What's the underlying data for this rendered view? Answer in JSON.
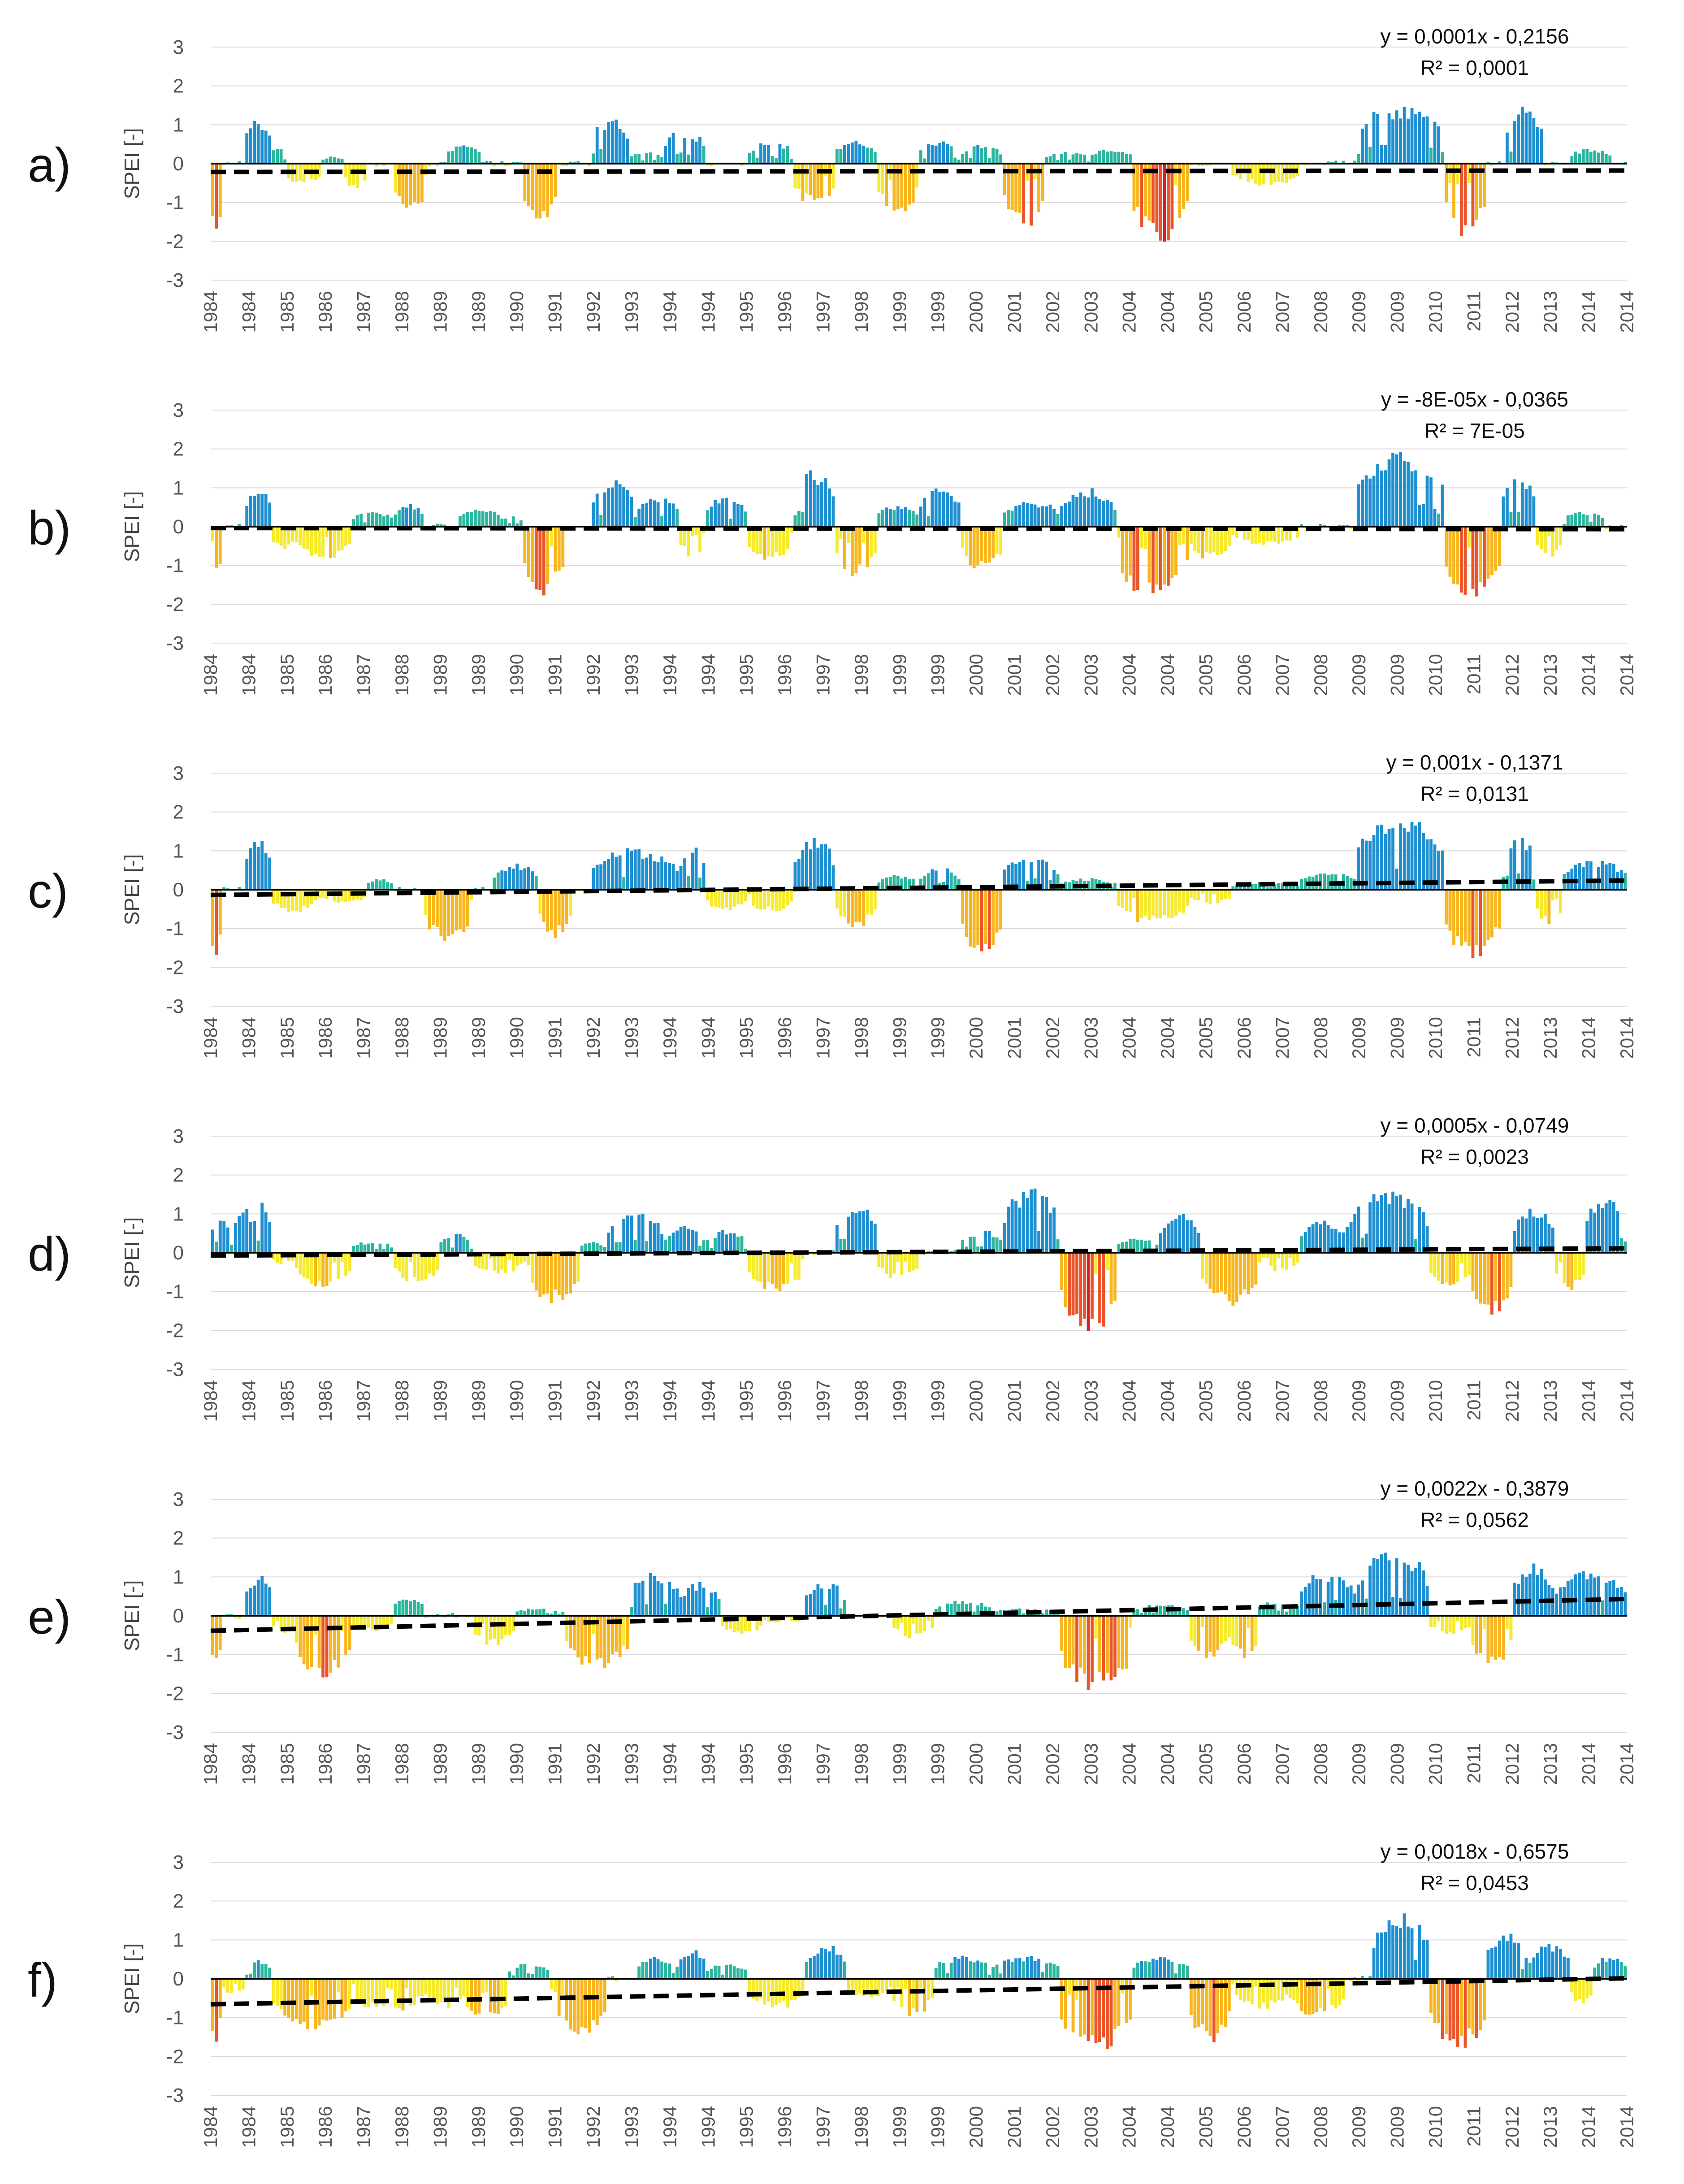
{
  "figure": {
    "colors": {
      "wet": "#1d8fd0",
      "wet_low": "#2bb59e",
      "dry_low": "#f6ea2c",
      "dry_mid": "#f7b51e",
      "dry_high": "#e9542a",
      "dry_extreme": "#d71f26",
      "trend": "#000000",
      "zero_line": "#000000",
      "grid": "#d9d9d9",
      "text": "#555555"
    }
  },
  "chart_data": [
    {
      "type": "bar",
      "panel_label": "a)",
      "ylabel": "SPEI [-]",
      "ylim": [
        -3,
        3
      ],
      "yticks": [
        "3",
        "2",
        "1",
        "0",
        "-1",
        "-2",
        "-3"
      ],
      "x_tick_labels": [
        "1984",
        "1984",
        "1985",
        "1986",
        "1987",
        "1988",
        "1989",
        "1989",
        "1990",
        "1991",
        "1992",
        "1993",
        "1994",
        "1994",
        "1995",
        "1996",
        "1997",
        "1998",
        "1999",
        "1999",
        "2000",
        "2001",
        "2002",
        "2003",
        "2004",
        "2004",
        "2005",
        "2006",
        "2007",
        "2008",
        "2009",
        "2009",
        "2010",
        "2011",
        "2012",
        "2013",
        "2014",
        "2014"
      ],
      "equation": "y = 0,0001x - 0,2156",
      "r_squared": "R² = 0,0001",
      "trend": {
        "slope": 0.0001,
        "intercept": -0.2156
      },
      "months": 372,
      "episodes": [
        [
          0,
          8,
          -1.8
        ],
        [
          8,
          23,
          0
        ],
        [
          23,
          44,
          1.2
        ],
        [
          44,
          55,
          0.5
        ],
        [
          55,
          78,
          -0.6
        ],
        [
          78,
          95,
          0.2
        ],
        [
          95,
          110,
          -0.7
        ],
        [
          110,
          130,
          0
        ],
        [
          130,
          152,
          -1.3
        ],
        [
          152,
          168,
          0
        ],
        [
          168,
          190,
          0.5
        ],
        [
          190,
          220,
          0
        ],
        [
          220,
          245,
          -1.6
        ],
        [
          245,
          270,
          0
        ],
        [
          270,
          296,
          1.2
        ],
        [
          296,
          320,
          0.3
        ],
        [
          320,
          350,
          0.9
        ],
        [
          350,
          380,
          0
        ],
        [
          380,
          410,
          0.6
        ],
        [
          410,
          440,
          -1.1
        ],
        [
          440,
          470,
          0.6
        ],
        [
          470,
          500,
          -1.3
        ],
        [
          500,
          530,
          0.6
        ],
        [
          530,
          560,
          0.5
        ],
        [
          560,
          590,
          -1.7
        ],
        [
          590,
          620,
          0.3
        ],
        [
          620,
          650,
          0.4
        ],
        [
          650,
          690,
          -2.1
        ],
        [
          690,
          720,
          0
        ],
        [
          720,
          770,
          -0.6
        ],
        [
          770,
          810,
          0
        ],
        [
          810,
          870,
          1.6
        ],
        [
          870,
          900,
          -1.9
        ],
        [
          900,
          915,
          0
        ],
        [
          915,
          940,
          1.5
        ],
        [
          940,
          960,
          0
        ],
        [
          960,
          990,
          0.4
        ],
        [
          990,
          1000,
          0
        ]
      ]
    },
    {
      "type": "bar",
      "panel_label": "b)",
      "ylabel": "SPEI [-]",
      "ylim": [
        -3,
        3
      ],
      "yticks": [
        "3",
        "2",
        "1",
        "0",
        "-1",
        "-2",
        "-3"
      ],
      "x_tick_labels": [
        "1984",
        "1984",
        "1985",
        "1986",
        "1987",
        "1988",
        "1989",
        "1989",
        "1990",
        "1991",
        "1992",
        "1993",
        "1994",
        "1994",
        "1995",
        "1996",
        "1997",
        "1998",
        "1999",
        "1999",
        "2000",
        "2001",
        "2002",
        "2003",
        "2004",
        "2004",
        "2005",
        "2006",
        "2007",
        "2008",
        "2009",
        "2009",
        "2010",
        "2011",
        "2012",
        "2013",
        "2014",
        "2014"
      ],
      "equation": "y = -8E-05x - 0,0365",
      "r_squared": "R² = 7E-05",
      "trend": {
        "slope": -8e-05,
        "intercept": -0.0365
      },
      "months": 372,
      "episodes": [
        [
          0,
          8,
          -1.4
        ],
        [
          8,
          23,
          0
        ],
        [
          23,
          44,
          1.0
        ],
        [
          44,
          60,
          -0.6
        ],
        [
          60,
          100,
          -0.9
        ],
        [
          100,
          130,
          0.4
        ],
        [
          130,
          150,
          0.6
        ],
        [
          150,
          175,
          0
        ],
        [
          175,
          205,
          0.5
        ],
        [
          205,
          220,
          0.3
        ],
        [
          220,
          250,
          -1.8
        ],
        [
          250,
          270,
          0
        ],
        [
          270,
          300,
          1.2
        ],
        [
          300,
          330,
          0.8
        ],
        [
          330,
          350,
          -0.8
        ],
        [
          350,
          380,
          0.8
        ],
        [
          380,
          410,
          -0.9
        ],
        [
          410,
          440,
          1.5
        ],
        [
          440,
          470,
          -1.3
        ],
        [
          470,
          500,
          0.6
        ],
        [
          500,
          530,
          1.0
        ],
        [
          530,
          560,
          -1.2
        ],
        [
          560,
          600,
          0.7
        ],
        [
          600,
          640,
          1.0
        ],
        [
          640,
          690,
          -1.9
        ],
        [
          690,
          720,
          -0.9
        ],
        [
          720,
          770,
          -0.5
        ],
        [
          770,
          810,
          0
        ],
        [
          810,
          870,
          2.0
        ],
        [
          870,
          910,
          -2.0
        ],
        [
          910,
          935,
          1.4
        ],
        [
          935,
          955,
          -0.8
        ],
        [
          955,
          985,
          0.4
        ],
        [
          985,
          1000,
          0
        ]
      ]
    },
    {
      "type": "bar",
      "panel_label": "c)",
      "ylabel": "SPEI [-]",
      "ylim": [
        -3,
        3
      ],
      "yticks": [
        "3",
        "2",
        "1",
        "0",
        "-1",
        "-2",
        "-3"
      ],
      "x_tick_labels": [
        "1984",
        "1984",
        "1985",
        "1986",
        "1987",
        "1988",
        "1989",
        "1989",
        "1990",
        "1991",
        "1992",
        "1993",
        "1994",
        "1994",
        "1995",
        "1996",
        "1997",
        "1998",
        "1999",
        "1999",
        "2000",
        "2001",
        "2002",
        "2003",
        "2004",
        "2004",
        "2005",
        "2006",
        "2007",
        "2008",
        "2009",
        "2009",
        "2010",
        "2011",
        "2012",
        "2013",
        "2014",
        "2014"
      ],
      "equation": "y = 0,001x - 0,1371",
      "r_squared": "R² = 0,0131",
      "trend": {
        "slope": 0.001,
        "intercept": -0.1371
      },
      "months": 372,
      "episodes": [
        [
          0,
          8,
          -1.9
        ],
        [
          8,
          23,
          0
        ],
        [
          23,
          44,
          1.3
        ],
        [
          44,
          75,
          -0.6
        ],
        [
          75,
          110,
          -0.4
        ],
        [
          110,
          130,
          0.3
        ],
        [
          130,
          150,
          0
        ],
        [
          150,
          185,
          -1.4
        ],
        [
          185,
          200,
          0
        ],
        [
          200,
          230,
          0.7
        ],
        [
          230,
          255,
          -1.3
        ],
        [
          255,
          270,
          0
        ],
        [
          270,
          330,
          1.1
        ],
        [
          330,
          350,
          1.2
        ],
        [
          350,
          380,
          -0.6
        ],
        [
          380,
          410,
          -0.6
        ],
        [
          410,
          440,
          1.4
        ],
        [
          440,
          470,
          -1.0
        ],
        [
          470,
          500,
          0.4
        ],
        [
          500,
          530,
          0.6
        ],
        [
          530,
          560,
          -1.7
        ],
        [
          560,
          600,
          0.9
        ],
        [
          600,
          640,
          0.3
        ],
        [
          640,
          690,
          -0.9
        ],
        [
          690,
          720,
          -0.4
        ],
        [
          720,
          770,
          0.2
        ],
        [
          770,
          810,
          0.5
        ],
        [
          810,
          870,
          2.0
        ],
        [
          870,
          910,
          -1.8
        ],
        [
          910,
          935,
          1.5
        ],
        [
          935,
          955,
          -0.9
        ],
        [
          955,
          1000,
          0.8
        ]
      ]
    },
    {
      "type": "bar",
      "panel_label": "d)",
      "ylabel": "SPEI [-]",
      "ylim": [
        -3,
        3
      ],
      "yticks": [
        "3",
        "2",
        "1",
        "0",
        "-1",
        "-2",
        "-3"
      ],
      "x_tick_labels": [
        "1984",
        "1984",
        "1985",
        "1986",
        "1987",
        "1988",
        "1989",
        "1989",
        "1990",
        "1991",
        "1992",
        "1993",
        "1994",
        "1994",
        "1995",
        "1996",
        "1997",
        "1998",
        "1999",
        "1999",
        "2000",
        "2001",
        "2002",
        "2003",
        "2004",
        "2004",
        "2005",
        "2006",
        "2007",
        "2008",
        "2009",
        "2009",
        "2010",
        "2011",
        "2012",
        "2013",
        "2014",
        "2014"
      ],
      "equation": "y = 0,0005x - 0,0749",
      "r_squared": "R² = 0,0023",
      "trend": {
        "slope": 0.0005,
        "intercept": -0.0749
      },
      "months": 372,
      "episodes": [
        [
          0,
          15,
          0.9
        ],
        [
          15,
          30,
          1.3
        ],
        [
          30,
          44,
          1.3
        ],
        [
          44,
          60,
          -0.3
        ],
        [
          60,
          100,
          -0.9
        ],
        [
          100,
          130,
          0.3
        ],
        [
          130,
          160,
          -0.8
        ],
        [
          160,
          185,
          0.5
        ],
        [
          185,
          220,
          -0.6
        ],
        [
          220,
          260,
          -1.3
        ],
        [
          260,
          280,
          0.3
        ],
        [
          280,
          320,
          1.1
        ],
        [
          320,
          350,
          0.7
        ],
        [
          350,
          380,
          0.6
        ],
        [
          380,
          420,
          -1.0
        ],
        [
          420,
          440,
          0
        ],
        [
          440,
          470,
          1.3
        ],
        [
          470,
          500,
          -0.7
        ],
        [
          500,
          530,
          0
        ],
        [
          530,
          560,
          0.6
        ],
        [
          560,
          600,
          1.7
        ],
        [
          600,
          640,
          -2.2
        ],
        [
          640,
          670,
          0.4
        ],
        [
          670,
          700,
          1.1
        ],
        [
          700,
          740,
          -1.4
        ],
        [
          740,
          770,
          -0.5
        ],
        [
          770,
          800,
          0.9
        ],
        [
          800,
          860,
          1.6
        ],
        [
          860,
          890,
          -1.0
        ],
        [
          890,
          920,
          -1.6
        ],
        [
          920,
          950,
          1.2
        ],
        [
          950,
          970,
          -1.0
        ],
        [
          970,
          1000,
          1.5
        ]
      ]
    },
    {
      "type": "bar",
      "panel_label": "e)",
      "ylabel": "SPEI [-]",
      "ylim": [
        -3,
        3
      ],
      "yticks": [
        "3",
        "2",
        "1",
        "0",
        "-1",
        "-2",
        "-3"
      ],
      "x_tick_labels": [
        "1984",
        "1984",
        "1985",
        "1986",
        "1987",
        "1988",
        "1989",
        "1989",
        "1990",
        "1991",
        "1992",
        "1993",
        "1994",
        "1994",
        "1995",
        "1996",
        "1997",
        "1998",
        "1999",
        "1999",
        "2000",
        "2001",
        "2002",
        "2003",
        "2004",
        "2004",
        "2005",
        "2006",
        "2007",
        "2008",
        "2009",
        "2009",
        "2010",
        "2011",
        "2012",
        "2013",
        "2014",
        "2014"
      ],
      "equation": "y = 0,0022x - 0,3879",
      "r_squared": "R² = 0,0562",
      "trend": {
        "slope": 0.0022,
        "intercept": -0.3879
      },
      "months": 372,
      "episodes": [
        [
          0,
          8,
          -1.3
        ],
        [
          8,
          23,
          0
        ],
        [
          23,
          44,
          1.1
        ],
        [
          44,
          60,
          -0.5
        ],
        [
          60,
          100,
          -1.6
        ],
        [
          100,
          130,
          -0.4
        ],
        [
          130,
          150,
          0.5
        ],
        [
          150,
          185,
          0
        ],
        [
          185,
          215,
          -0.8
        ],
        [
          215,
          250,
          0.2
        ],
        [
          250,
          295,
          -1.5
        ],
        [
          295,
          330,
          1.2
        ],
        [
          330,
          360,
          0.9
        ],
        [
          360,
          390,
          -0.5
        ],
        [
          390,
          420,
          -0.2
        ],
        [
          420,
          450,
          0.9
        ],
        [
          450,
          480,
          0
        ],
        [
          480,
          510,
          -0.6
        ],
        [
          510,
          550,
          0.4
        ],
        [
          550,
          600,
          0.2
        ],
        [
          600,
          650,
          -2.0
        ],
        [
          650,
          690,
          0.3
        ],
        [
          690,
          720,
          -1.1
        ],
        [
          720,
          740,
          -1.2
        ],
        [
          740,
          770,
          0.4
        ],
        [
          770,
          810,
          1.2
        ],
        [
          810,
          860,
          1.8
        ],
        [
          860,
          890,
          -0.5
        ],
        [
          890,
          920,
          -1.4
        ],
        [
          920,
          950,
          1.4
        ],
        [
          950,
          1000,
          1.2
        ]
      ]
    },
    {
      "type": "bar",
      "panel_label": "f)",
      "ylabel": "SPEI [-]",
      "ylim": [
        -3,
        3
      ],
      "yticks": [
        "3",
        "2",
        "1",
        "0",
        "-1",
        "-2",
        "-3"
      ],
      "x_tick_labels": [
        "1984",
        "1984",
        "1985",
        "1986",
        "1987",
        "1988",
        "1989",
        "1989",
        "1990",
        "1991",
        "1992",
        "1993",
        "1994",
        "1994",
        "1995",
        "1996",
        "1997",
        "1998",
        "1999",
        "1999",
        "2000",
        "2001",
        "2002",
        "2003",
        "2004",
        "2004",
        "2005",
        "2006",
        "2007",
        "2008",
        "2009",
        "2009",
        "2010",
        "2011",
        "2012",
        "2013",
        "2014",
        "2014"
      ],
      "equation": "y = 0,0018x - 0,6575",
      "r_squared": "R² = 0,0453",
      "trend": {
        "slope": 0.0018,
        "intercept": -0.6575
      },
      "months": 372,
      "episodes": [
        [
          0,
          8,
          -1.7
        ],
        [
          8,
          23,
          -0.4
        ],
        [
          23,
          44,
          0.5
        ],
        [
          44,
          100,
          -1.4
        ],
        [
          100,
          150,
          -0.9
        ],
        [
          150,
          180,
          -0.8
        ],
        [
          180,
          210,
          -1.2
        ],
        [
          210,
          240,
          0.4
        ],
        [
          240,
          280,
          -1.6
        ],
        [
          280,
          300,
          0
        ],
        [
          300,
          330,
          0.6
        ],
        [
          330,
          350,
          0.8
        ],
        [
          350,
          380,
          0.4
        ],
        [
          380,
          420,
          -0.8
        ],
        [
          420,
          450,
          0.9
        ],
        [
          450,
          480,
          -0.5
        ],
        [
          480,
          510,
          -1.0
        ],
        [
          510,
          550,
          0.6
        ],
        [
          550,
          600,
          0.6
        ],
        [
          600,
          650,
          -1.9
        ],
        [
          650,
          690,
          0.6
        ],
        [
          690,
          720,
          -1.7
        ],
        [
          720,
          760,
          -0.8
        ],
        [
          760,
          800,
          -1.0
        ],
        [
          800,
          820,
          0
        ],
        [
          820,
          860,
          1.8
        ],
        [
          860,
          900,
          -1.9
        ],
        [
          900,
          930,
          1.2
        ],
        [
          930,
          960,
          0.9
        ],
        [
          960,
          975,
          -0.7
        ],
        [
          975,
          1000,
          0.6
        ]
      ]
    }
  ]
}
